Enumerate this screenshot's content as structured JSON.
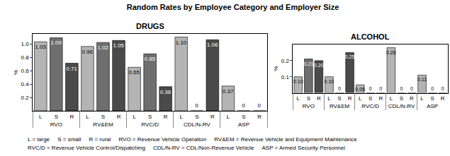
{
  "title": "Random Rates by Employee Category and Employer Size",
  "footnotes": [
    [
      "L = large",
      "S = small",
      "R = rural",
      "RVO = Revenue Vehicle Operation",
      "RV&EM = Revenue Vehicle and Equipment Maintenance"
    ],
    [
      "RVC/D = Revenue Vehicle Control/Dispatching",
      "CDL/N-RV = CDL/Non-Revenue Vehicle",
      "ASP = Armed Security Personnel"
    ]
  ],
  "chart_data": [
    {
      "type": "bar",
      "title": "DRUGS",
      "categories": [
        "L",
        "S",
        "R",
        "L",
        "S",
        "R",
        "L",
        "S",
        "R",
        "L",
        "S",
        "R",
        "L",
        "S",
        "R"
      ],
      "groups": [
        "RVO",
        "RVO",
        "RVO",
        "RV&EM",
        "RV&EM",
        "RV&EM",
        "RVC/D",
        "RVC/D",
        "RVC/D",
        "CDL/N-RV",
        "CDL/N-RV",
        "CDL/N-RV",
        "ASP",
        "ASP",
        "ASP"
      ],
      "values": [
        1.03,
        1.09,
        0.71,
        0.96,
        1.02,
        1.05,
        0.65,
        0.85,
        0.36,
        1.1,
        0,
        1.06,
        0.37,
        0,
        0
      ],
      "value_labels": [
        "1.03",
        "1.09",
        "0.71",
        "0.96",
        "1.02",
        "1.05",
        "0.65",
        "0.85",
        "0.36",
        "1.10",
        "0",
        "1.06",
        "0.37",
        "0",
        "0"
      ],
      "colors": [
        "#b4b4b4",
        "#6e6e6e",
        "#4a4a4a",
        "#b4b4b4",
        "#6e6e6e",
        "#4a4a4a",
        "#b4b4b4",
        "#6e6e6e",
        "#4a4a4a",
        "#b4b4b4",
        "#6e6e6e",
        "#4a4a4a",
        "#b4b4b4",
        "#6e6e6e",
        "#4a4a4a"
      ],
      "y_label": "%",
      "ylim": [
        0,
        1.15
      ],
      "yticks": [
        0.2,
        0.4,
        0.6,
        0.8,
        {
          "value": 1,
          "label": "1.0"
        }
      ],
      "data_labels": true,
      "grid": false
    },
    {
      "type": "bar",
      "title": "ALCOHOL",
      "categories": [
        "L",
        "S",
        "R",
        "L",
        "S",
        "R",
        "L",
        "S",
        "R",
        "L",
        "S",
        "R",
        "L",
        "S",
        "R"
      ],
      "groups": [
        "RVO",
        "RVO",
        "RVO",
        "RV&EM",
        "RV&EM",
        "RV&EM",
        "RVC/D",
        "RVC/D",
        "RVC/D",
        "CDL/N-RV",
        "CDL/N-RV",
        "CDL/N-RV",
        "ASP",
        "ASP",
        "ASP"
      ],
      "values": [
        0.1,
        0.21,
        0.2,
        0.1,
        0,
        0.25,
        0.05,
        0,
        0,
        0.28,
        0,
        0,
        0.11,
        0,
        0
      ],
      "value_labels": [
        "0.10",
        "0.21",
        "0.20",
        "0.10",
        "0",
        "0.25",
        "0.05",
        "0",
        "0",
        "0.28",
        "0",
        "0",
        "0.11",
        "0",
        "0"
      ],
      "colors": [
        "#b4b4b4",
        "#6e6e6e",
        "#4a4a4a",
        "#b4b4b4",
        "#6e6e6e",
        "#4a4a4a",
        "#b4b4b4",
        "#6e6e6e",
        "#4a4a4a",
        "#b4b4b4",
        "#6e6e6e",
        "#4a4a4a",
        "#b4b4b4",
        "#6e6e6e",
        "#4a4a4a"
      ],
      "y_label": "%",
      "ylim": [
        0,
        0.3
      ],
      "yticks": [
        0.1,
        0.2
      ],
      "data_labels": true,
      "grid": false
    }
  ]
}
